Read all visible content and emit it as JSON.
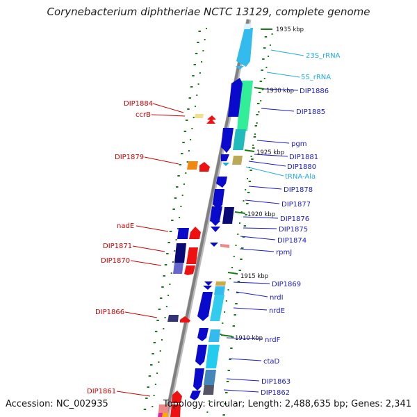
{
  "title": "Corynebacterium diphtheriae NCTC 13129, complete genome",
  "accession": "Accession: NC_002935",
  "summary": "Topology: circular; Length: 2,488,635 bp; Genes: 2,341",
  "colors": {
    "backbone": "#888888",
    "label_left": "#cc0000",
    "label_right": "#1a1acc",
    "label_rna": "#22aadd",
    "tick_dots": "#1a7a1a"
  },
  "kbp_marks": [
    "1935 kbp",
    "1930 kbp",
    "1925 kbp",
    "1920 kbp",
    "1915 kbp",
    "1910 kbp"
  ],
  "left_labels": [
    "DIP1884",
    "ccrB",
    "DIP1879",
    "nadE",
    "DIP1871",
    "DIP1870",
    "DIP1866",
    "DIP1861"
  ],
  "right_labels": [
    "23S_rRNA",
    "5S_rRNA",
    "DIP1886",
    "DIP1885",
    "pgm",
    "DIP1881",
    "DIP1880",
    "tRNA-Ala",
    "DIP1878",
    "DIP1877",
    "DIP1876",
    "DIP1875",
    "DIP1874",
    "rpmJ",
    "DIP1869",
    "nrdI",
    "nrdE",
    "nrdF",
    "ctaD",
    "DIP1863",
    "DIP1862"
  ]
}
